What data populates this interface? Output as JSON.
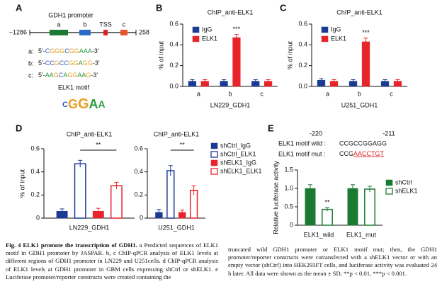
{
  "panel_labels": [
    "A",
    "B",
    "C",
    "D",
    "E"
  ],
  "panel_a": {
    "title": "GDH1 promoter",
    "start": "−1286",
    "end": "258",
    "regions": [
      {
        "label": "a",
        "color": "#1a7a32"
      },
      {
        "label": "b",
        "color": "#2a6cc8"
      },
      {
        "label": "TSS",
        "color": "#e02020"
      },
      {
        "label": "c",
        "color": "#e8542b"
      }
    ],
    "sequences": [
      {
        "label": "a:",
        "color": "#1a9a3a",
        "seq": "5'-CGGGCGGAAA-3'"
      },
      {
        "label": "b:",
        "color": "#2a5cc8",
        "seq": "5'-CCGCCGGAGG-3'"
      },
      {
        "label": "c:",
        "color": "#e03030",
        "seq": "5'-AAGCAGGAAG-3'"
      }
    ],
    "base_colors": {
      "A": "#2a9a3a",
      "C": "#2a5cc8",
      "G": "#e8a020"
    },
    "motif_title": "ELK1 motif",
    "motif_logo": "CGGAA"
  },
  "chart_data": [
    {
      "type": "bar",
      "title": "ChIP_anti-ELK1",
      "y_label": "% of input",
      "x_label": "LN229_GDH1",
      "categories": [
        "a",
        "b",
        "c"
      ],
      "category_colors": [
        "#1a9a3a",
        "#2a5cc8",
        "#e03030"
      ],
      "series": [
        {
          "name": "IgG",
          "color": "#1a3a94",
          "fill": true,
          "values": [
            0.05,
            0.05,
            0.05
          ],
          "errors": [
            0.015,
            0.015,
            0.015
          ]
        },
        {
          "name": "ELK1",
          "color": "#e8242b",
          "fill": true,
          "values": [
            0.05,
            0.47,
            0.05
          ],
          "errors": [
            0.015,
            0.03,
            0.015
          ]
        }
      ],
      "ylim": [
        0,
        0.6
      ],
      "yticks": [
        {
          "value": 0,
          "label": "0.0"
        },
        0.2,
        0.4,
        0.6
      ],
      "legend": "upper left",
      "annotation": "***"
    },
    {
      "type": "bar",
      "title": "ChIP_anti-ELK1",
      "y_label": "% of input",
      "x_label": "U251_GDH1",
      "categories": [
        "a",
        "b",
        "c"
      ],
      "category_colors": [
        "#1a9a3a",
        "#2a5cc8",
        "#e03030"
      ],
      "series": [
        {
          "name": "IgG",
          "color": "#1a3a94",
          "fill": true,
          "values": [
            0.06,
            0.05,
            0.05
          ],
          "errors": [
            0.015,
            0.015,
            0.015
          ]
        },
        {
          "name": "ELK1",
          "color": "#e8242b",
          "fill": true,
          "values": [
            0.05,
            0.43,
            0.05
          ],
          "errors": [
            0.015,
            0.035,
            0.015
          ]
        }
      ],
      "ylim": [
        0,
        0.6
      ],
      "yticks": [
        {
          "value": 0,
          "label": "0.0"
        },
        0.2,
        0.4,
        0.6
      ],
      "legend": "upper left",
      "annotation": "***"
    },
    {
      "type": "bar",
      "title": "ChIP_anti-ELK1",
      "y_label": "% of input",
      "categories": [
        "LN229_GDH1"
      ],
      "series": [
        {
          "color": "#1a3a94",
          "fill": true,
          "values": [
            0.06
          ],
          "errors": [
            0.02
          ]
        },
        {
          "color": "#1a3a94",
          "fill": false,
          "values": [
            0.47
          ],
          "errors": [
            0.03
          ]
        },
        {
          "color": "#e8242b",
          "fill": true,
          "values": [
            0.06
          ],
          "errors": [
            0.025
          ]
        },
        {
          "color": "#e8242b",
          "fill": false,
          "values": [
            0.28
          ],
          "errors": [
            0.03
          ]
        }
      ],
      "ylim": [
        0,
        0.6
      ],
      "yticks": [
        0,
        0.2,
        0.4,
        0.6
      ],
      "annotation": "**"
    },
    {
      "type": "bar",
      "title": "ChIP_anti-ELK1",
      "categories": [
        "U251_GDH1"
      ],
      "series": [
        {
          "name": "shCtrl_IgG",
          "color": "#1a3a94",
          "fill": true,
          "values": [
            0.05
          ],
          "errors": [
            0.025
          ]
        },
        {
          "name": "shCtrl_ELK1",
          "color": "#1a3a94",
          "fill": false,
          "values": [
            0.41
          ],
          "errors": [
            0.045
          ]
        },
        {
          "name": "shELK1_IgG",
          "color": "#e8242b",
          "fill": true,
          "values": [
            0.05
          ],
          "errors": [
            0.02
          ]
        },
        {
          "name": "shELK1_ELK1",
          "color": "#e8242b",
          "fill": false,
          "values": [
            0.24
          ],
          "errors": [
            0.04
          ]
        }
      ],
      "ylim": [
        0,
        0.6
      ],
      "yticks": [
        0,
        0.2,
        0.4,
        0.6
      ],
      "legend": "right",
      "annotation": "**"
    },
    {
      "type": "bar",
      "y_label": "Relative luciferase activity",
      "header": {
        "positions": [
          "-220",
          "-211"
        ],
        "wild_label": "ELK1 motif wild :",
        "wild_seq": "CCGCCGGAGG",
        "mut_label": "ELK1 motif mut :",
        "mut_seq_kept": "CCG",
        "mut_seq_changed": "AACCTGT",
        "mut_color": "#e02020"
      },
      "categories": [
        "ELK1_wild",
        "ELK1_mut"
      ],
      "series": [
        {
          "name": "shCtrl",
          "color": "#1a7a32",
          "fill": true,
          "values": [
            1.0,
            1.0
          ],
          "errors": [
            0.1,
            0.1
          ]
        },
        {
          "name": "shELK1",
          "color": "#1a7a32",
          "fill": false,
          "values": [
            0.43,
            0.98
          ],
          "errors": [
            0.05,
            0.08
          ]
        }
      ],
      "ylim": [
        0,
        1.5
      ],
      "yticks": [
        0,
        0.5,
        {
          "value": 1.0,
          "label": "1.0"
        },
        1.5
      ],
      "legend": "upper right",
      "annotation": "**"
    }
  ],
  "caption": {
    "heading": "Fig. 4 ELK1 promote the transcription of GDH1.",
    "left": "a Predicted sequences of ELK1 motif in GDH1 promoter by JASPAR. b, c ChIP-qPCR analysis of ELK1 levels at different regions of GDH1 promoter in LN229 and U251cells. d ChIP-qPCR analysis of ELK1 levels at GDH1 promoter in GBM cells expressing shCtrl or shELK1. e Luciferase promoter/reporter constructs were created containing the",
    "right": "truncated wild GDH1 promoter or ELK1 motif mut; then, the GDH1 promoter/reporter constructs were cotransfected with a shELK1 vector or with an empty vector (shCtrl) into HEK293FT cells, and luciferase activity was evaluated 24 h later. All data were shown as the mean ± SD, **p < 0.01, ***p < 0.001."
  }
}
